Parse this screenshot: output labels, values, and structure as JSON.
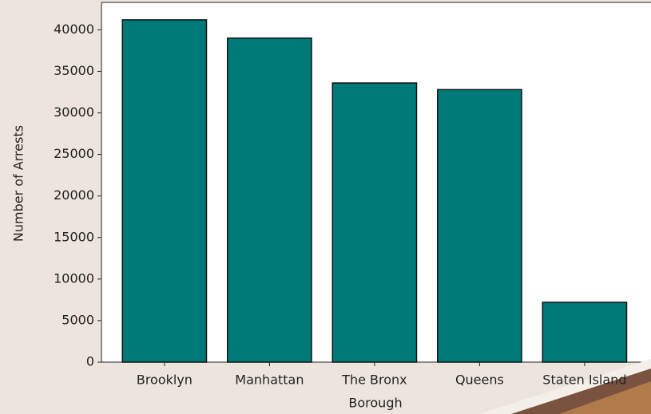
{
  "chart_data": {
    "type": "bar",
    "x_label": "Borough",
    "y_label": "Number of Arrests",
    "categories": [
      "Brooklyn",
      "Manhattan",
      "The Bronx",
      "Queens",
      "Staten Island"
    ],
    "values": [
      41200,
      39000,
      33600,
      32800,
      7200
    ],
    "color": "#007a78",
    "ylim": [
      0,
      43300
    ],
    "yticks": [
      0,
      5000,
      10000,
      15000,
      20000,
      25000,
      30000,
      35000,
      40000
    ],
    "grid": false
  }
}
